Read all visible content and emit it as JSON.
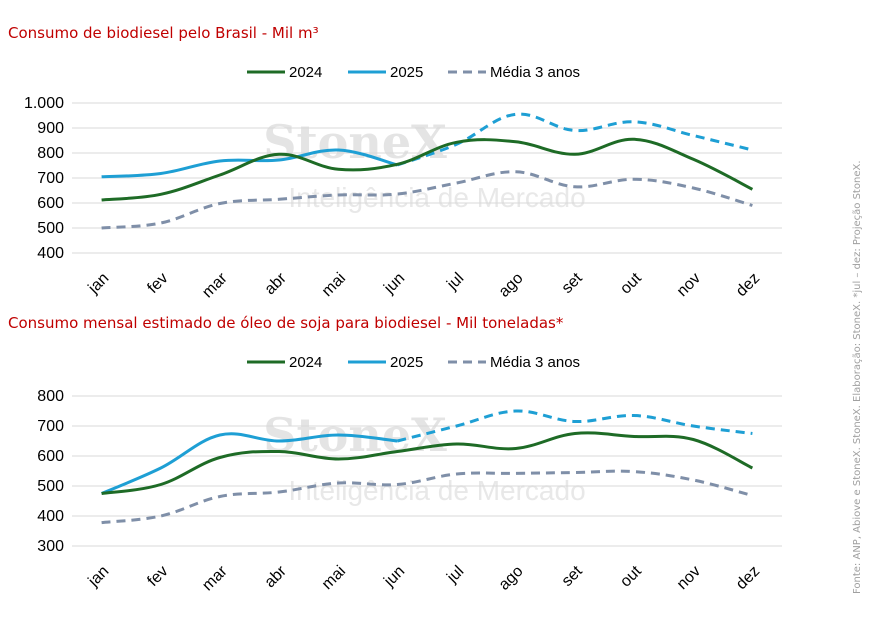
{
  "source_note": "Fonte: ANP, Abiove e StoneX. StoneX. Elaboração: StoneX. *jul – dez: Projeção StoneX.",
  "watermark": {
    "brand": "StoneX",
    "tagline": "Inteligência de Mercado"
  },
  "colors": {
    "2024": "#1e6b26",
    "2025": "#1e9fd4",
    "avg": "#7f8fa8"
  },
  "chart_data": [
    {
      "type": "line",
      "title": "Consumo de biodiesel pelo Brasil - Mil m³",
      "categories": [
        "jan",
        "fev",
        "mar",
        "abr",
        "mai",
        "jun",
        "jul",
        "ago",
        "set",
        "out",
        "nov",
        "dez"
      ],
      "ylim": [
        400,
        1000
      ],
      "yticks": [
        400,
        500,
        600,
        700,
        800,
        900,
        1000
      ],
      "ytick_labels": [
        "400",
        "500",
        "600",
        "700",
        "800",
        "900",
        "1.000"
      ],
      "grid": true,
      "legend_position": "top",
      "series": [
        {
          "name": "2024",
          "key": "2024",
          "values": [
            612,
            635,
            712,
            795,
            735,
            755,
            843,
            845,
            795,
            855,
            775,
            655
          ]
        },
        {
          "name": "2025",
          "key": "2025",
          "values": [
            705,
            718,
            768,
            772,
            812,
            752,
            835,
            955,
            890,
            925,
            870,
            812
          ],
          "dashed_from": 6
        },
        {
          "name": "Média 3 anos",
          "key": "avg",
          "dashed": true,
          "values": [
            500,
            520,
            598,
            615,
            632,
            636,
            680,
            725,
            665,
            695,
            660,
            590
          ]
        }
      ]
    },
    {
      "type": "line",
      "title": "Consumo mensal estimado de óleo de soja para biodiesel - Mil toneladas*",
      "categories": [
        "jan",
        "fev",
        "mar",
        "abr",
        "mai",
        "jun",
        "jul",
        "ago",
        "set",
        "out",
        "nov",
        "dez"
      ],
      "ylim": [
        300,
        800
      ],
      "yticks": [
        300,
        400,
        500,
        600,
        700,
        800
      ],
      "ytick_labels": [
        "300",
        "400",
        "500",
        "600",
        "700",
        "800"
      ],
      "grid": true,
      "legend_position": "top",
      "series": [
        {
          "name": "2024",
          "key": "2024",
          "values": [
            475,
            505,
            595,
            615,
            590,
            615,
            640,
            625,
            675,
            665,
            655,
            560
          ]
        },
        {
          "name": "2025",
          "key": "2025",
          "values": [
            475,
            560,
            670,
            650,
            670,
            650,
            700,
            750,
            715,
            735,
            700,
            675
          ],
          "dashed_from": 6
        },
        {
          "name": "Média 3 anos",
          "key": "avg",
          "dashed": true,
          "values": [
            378,
            400,
            465,
            480,
            510,
            505,
            540,
            542,
            545,
            548,
            520,
            468
          ]
        }
      ]
    }
  ]
}
